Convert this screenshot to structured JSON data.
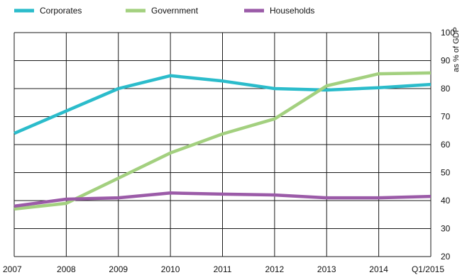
{
  "chart_data": {
    "type": "line",
    "categories": [
      "2007",
      "2008",
      "2009",
      "2010",
      "2011",
      "2012",
      "2013",
      "2014",
      "Q1/2015"
    ],
    "ylabel": "as % of GDP",
    "ylim": [
      20,
      100
    ],
    "y_ticks": [
      20,
      30,
      40,
      50,
      60,
      70,
      80,
      90,
      100
    ],
    "y_axis_side": "right",
    "grid": true,
    "legend_position": "top-left",
    "series": [
      {
        "name": "Corporates",
        "color": "#2bbccb",
        "values": [
          64,
          72,
          80,
          84.6,
          82.7,
          80,
          79.5,
          80.3,
          81.5
        ]
      },
      {
        "name": "Government",
        "color": "#a3d07f",
        "values": [
          37,
          39,
          48,
          57,
          63.8,
          69.2,
          81,
          85.3,
          85.6
        ]
      },
      {
        "name": "Households",
        "color": "#9b5ba8",
        "values": [
          38,
          40.5,
          41,
          42.7,
          42.3,
          42,
          41,
          41,
          41.5
        ]
      }
    ]
  }
}
